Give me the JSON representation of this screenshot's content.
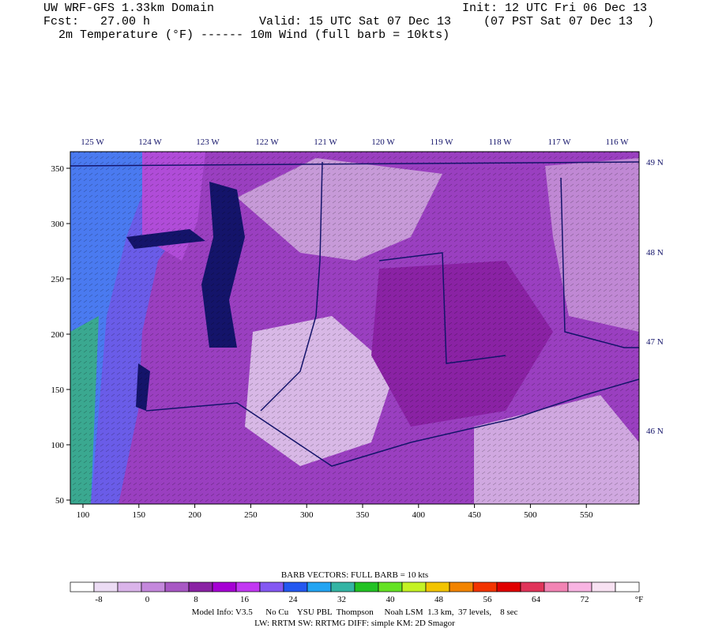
{
  "header": {
    "line1_left": "UW WRF-GFS 1.33km Domain",
    "line1_right": "Init: 12 UTC Fri 06 Dec 13",
    "line2_left": "Fcst:   27.00 h",
    "line2_mid": "Valid: 15 UTC Sat 07 Dec 13",
    "line2_right": "(07 PST Sat 07 Dec 13  )",
    "line3": "2m Temperature (°F) ------ 10m Wind (full barb = 10kts)"
  },
  "map": {
    "lon_labels": [
      "125 W",
      "124 W",
      "123 W",
      "122 W",
      "121 W",
      "120 W",
      "119 W",
      "118 W",
      "117 W",
      "116 W"
    ],
    "lat_labels": [
      "49 N",
      "48 N",
      "47 N",
      "46 N"
    ],
    "y_axis": [
      "350",
      "300",
      "250",
      "200",
      "150",
      "100",
      "50"
    ],
    "x_axis": [
      "100",
      "150",
      "200",
      "250",
      "300",
      "350",
      "400",
      "450",
      "500",
      "550"
    ]
  },
  "colorbar": {
    "title": "BARB VECTORS:  FULL BARB = 10 kts",
    "colors": [
      "#ffffff",
      "#ecdcf4",
      "#dab4ea",
      "#c488dc",
      "#a858c4",
      "#8a22a4",
      "#a600d4",
      "#c238f2",
      "#8458f2",
      "#2458f0",
      "#22a4f2",
      "#34b4a4",
      "#22c224",
      "#64e224",
      "#c4f224",
      "#f2c400",
      "#f28400",
      "#f23400",
      "#e00000",
      "#e0345a",
      "#f284b4",
      "#f8b4e2",
      "#f8e2f2",
      "#ffffff"
    ],
    "labels": [
      "-8",
      "0",
      "8",
      "16",
      "24",
      "32",
      "40",
      "48",
      "56",
      "64",
      "72"
    ],
    "unit": "°F"
  },
  "footer": {
    "line1": "Model Info: V3.5      No Cu    YSU PBL  Thompson     Noah LSM  1.3 km,  37 levels,    8 sec",
    "line2": "LW: RRTM SW: RRTMG   DIFF: simple KM: 2D Smagor"
  }
}
